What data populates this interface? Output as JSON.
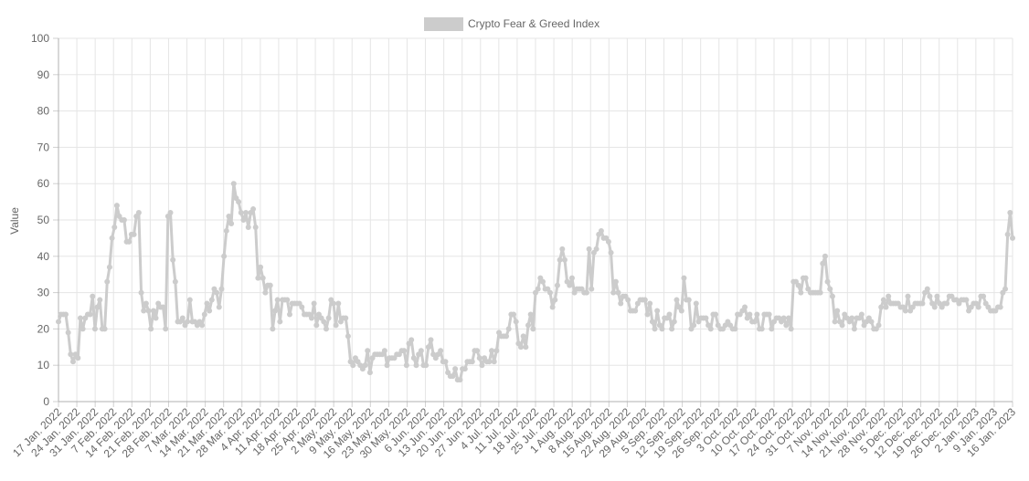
{
  "chart_data": {
    "type": "line",
    "title": "",
    "xlabel": "",
    "ylabel": "Value",
    "ylim": [
      0,
      100
    ],
    "y_ticks": [
      0,
      10,
      20,
      30,
      40,
      50,
      60,
      70,
      80,
      90,
      100
    ],
    "grid": true,
    "legend_position": "top-center",
    "line_color": "#cccccc",
    "x_tick_labels": [
      "17 Jan. 2022",
      "24 Jan. 2022",
      "31 Jan. 2022",
      "7 Feb. 2022",
      "14 Feb. 2022",
      "21 Feb. 2022",
      "28 Feb. 2022",
      "7 Mar. 2022",
      "14 Mar. 2022",
      "21 Mar. 2022",
      "28 Mar. 2022",
      "4 Apr. 2022",
      "11 Apr. 2022",
      "18 Apr. 2022",
      "25 Apr. 2022",
      "2 May. 2022",
      "9 May. 2022",
      "16 May. 2022",
      "23 May. 2022",
      "30 May. 2022",
      "6 Jun. 2022",
      "13 Jun. 2022",
      "20 Jun. 2022",
      "27 Jun. 2022",
      "4 Jul. 2022",
      "11 Jul. 2022",
      "18 Jul. 2022",
      "25 Jul. 2022",
      "1 Aug. 2022",
      "8 Aug. 2022",
      "15 Aug. 2022",
      "22 Aug. 2022",
      "29 Aug. 2022",
      "5 Sep. 2022",
      "12 Sep. 2022",
      "19 Sep. 2022",
      "26 Sep. 2022",
      "3 Oct. 2022",
      "10 Oct. 2022",
      "17 Oct. 2022",
      "24 Oct. 2022",
      "31 Oct. 2022",
      "7 Nov. 2022",
      "14 Nov. 2022",
      "21 Nov. 2022",
      "28 Nov. 2022",
      "5 Dec. 2022",
      "12 Dec. 2022",
      "19 Dec. 2022",
      "26 Dec. 2022",
      "2 Jan. 2023",
      "9 Jan. 2023",
      "16 Jan. 2023"
    ],
    "series": [
      {
        "name": "Crypto Fear & Greed Index",
        "values": [
          22,
          24,
          24,
          24,
          19,
          13,
          11,
          13,
          12,
          23,
          20,
          23,
          24,
          24,
          29,
          20,
          26,
          28,
          20,
          20,
          33,
          37,
          45,
          48,
          54,
          51,
          50,
          50,
          44,
          44,
          46,
          46,
          51,
          52,
          30,
          25,
          27,
          25,
          20,
          25,
          23,
          27,
          26,
          26,
          20,
          51,
          52,
          39,
          33,
          22,
          22,
          23,
          21,
          22,
          28,
          22,
          22,
          21,
          22,
          21,
          24,
          27,
          25,
          28,
          31,
          30,
          26,
          31,
          40,
          47,
          51,
          49,
          60,
          56,
          55,
          52,
          50,
          52,
          48,
          52,
          53,
          48,
          34,
          37,
          34,
          30,
          32,
          32,
          20,
          25,
          28,
          22,
          28,
          28,
          28,
          24,
          27,
          27,
          27,
          27,
          26,
          24,
          24,
          24,
          23,
          27,
          21,
          24,
          23,
          22,
          20,
          23,
          28,
          27,
          21,
          27,
          22,
          23,
          23,
          18,
          11,
          10,
          12,
          11,
          10,
          9,
          10,
          14,
          8,
          12,
          13,
          13,
          13,
          13,
          14,
          10,
          12,
          12,
          12,
          13,
          13,
          14,
          14,
          10,
          16,
          17,
          12,
          10,
          13,
          14,
          10,
          10,
          15,
          17,
          13,
          12,
          13,
          14,
          11,
          11,
          8,
          7,
          7,
          9,
          6,
          6,
          9,
          9,
          11,
          11,
          11,
          14,
          14,
          12,
          10,
          12,
          11,
          11,
          14,
          11,
          14,
          19,
          18,
          18,
          18,
          20,
          24,
          24,
          22,
          16,
          15,
          18,
          15,
          21,
          24,
          20,
          30,
          31,
          34,
          33,
          31,
          31,
          30,
          26,
          28,
          32,
          39,
          42,
          39,
          33,
          32,
          34,
          30,
          31,
          31,
          31,
          30,
          30,
          42,
          31,
          41,
          42,
          46,
          47,
          45,
          45,
          44,
          41,
          30,
          33,
          30,
          27,
          29,
          29,
          28,
          25,
          25,
          25,
          27,
          28,
          28,
          28,
          24,
          27,
          22,
          20,
          25,
          21,
          20,
          23,
          23,
          24,
          20,
          22,
          28,
          26,
          25,
          34,
          28,
          28,
          20,
          21,
          27,
          22,
          23,
          23,
          23,
          21,
          20,
          24,
          24,
          21,
          20,
          20,
          21,
          22,
          21,
          20,
          20,
          24,
          24,
          25,
          26,
          23,
          24,
          22,
          22,
          24,
          20,
          20,
          24,
          24,
          24,
          20,
          22,
          23,
          23,
          22,
          23,
          21,
          23,
          20,
          33,
          33,
          32,
          30,
          34,
          34,
          31,
          30,
          30,
          30,
          30,
          30,
          38,
          40,
          33,
          31,
          29,
          22,
          25,
          22,
          21,
          24,
          23,
          22,
          23,
          20,
          23,
          23,
          24,
          21,
          22,
          23,
          22,
          20,
          20,
          21,
          26,
          28,
          26,
          29,
          27,
          27,
          27,
          27,
          26,
          26,
          25,
          29,
          25,
          26,
          27,
          27,
          27,
          27,
          30,
          31,
          29,
          27,
          26,
          29,
          27,
          26,
          27,
          27,
          29,
          29,
          28,
          28,
          27,
          28,
          28,
          28,
          25,
          26,
          27,
          27,
          26,
          29,
          29,
          27,
          26,
          25,
          25,
          25,
          26,
          26,
          30,
          31,
          46,
          52,
          45
        ]
      }
    ]
  }
}
